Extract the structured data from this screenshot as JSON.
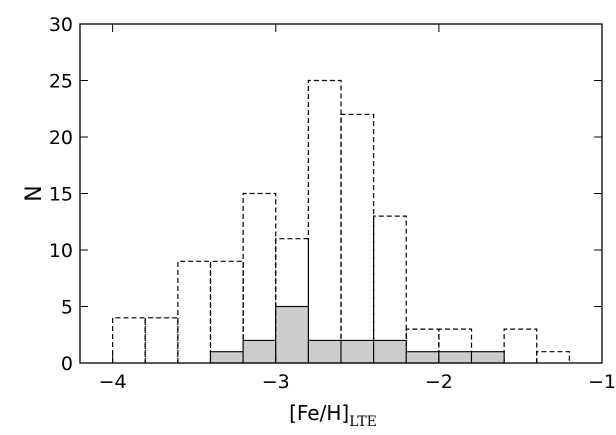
{
  "chart_data": {
    "type": "bar",
    "xlabel": {
      "main": "[Fe/H]",
      "subscript": "LTE"
    },
    "ylabel": "N",
    "xlim": [
      -4.2,
      -1.0
    ],
    "ylim": [
      0,
      30
    ],
    "xticks": [
      -4,
      -3,
      -2,
      -1
    ],
    "xtick_labels": [
      "−4",
      "−3",
      "−2",
      "−1"
    ],
    "yticks": [
      0,
      5,
      10,
      15,
      20,
      25,
      30
    ],
    "ytick_labels": [
      "0",
      "5",
      "10",
      "15",
      "20",
      "25",
      "30"
    ],
    "bin_width": 0.2,
    "series": [
      {
        "style": "dashed-outline",
        "bins": [
          {
            "left": -4.0,
            "value": 4
          },
          {
            "left": -3.8,
            "value": 4
          },
          {
            "left": -3.6,
            "value": 9
          },
          {
            "left": -3.4,
            "value": 9
          },
          {
            "left": -3.2,
            "value": 15
          },
          {
            "left": -3.0,
            "value": 11
          },
          {
            "left": -2.8,
            "value": 25
          },
          {
            "left": -2.6,
            "value": 22
          },
          {
            "left": -2.4,
            "value": 13
          },
          {
            "left": -2.2,
            "value": 3
          },
          {
            "left": -2.0,
            "value": 3
          },
          {
            "left": -1.8,
            "value": 0
          },
          {
            "left": -1.6,
            "value": 3
          },
          {
            "left": -1.4,
            "value": 1
          }
        ]
      },
      {
        "style": "filled-gray",
        "bins": [
          {
            "left": -3.4,
            "value": 1
          },
          {
            "left": -3.2,
            "value": 2
          },
          {
            "left": -3.0,
            "value": 5
          },
          {
            "left": -2.8,
            "value": 2
          },
          {
            "left": -2.6,
            "value": 2
          },
          {
            "left": -2.4,
            "value": 2
          },
          {
            "left": -2.2,
            "value": 1
          },
          {
            "left": -2.0,
            "value": 1
          },
          {
            "left": -1.8,
            "value": 1
          }
        ]
      }
    ],
    "colors": {
      "fill": "#cccccc",
      "line": "#000000"
    },
    "grid": false,
    "legend": "none"
  }
}
